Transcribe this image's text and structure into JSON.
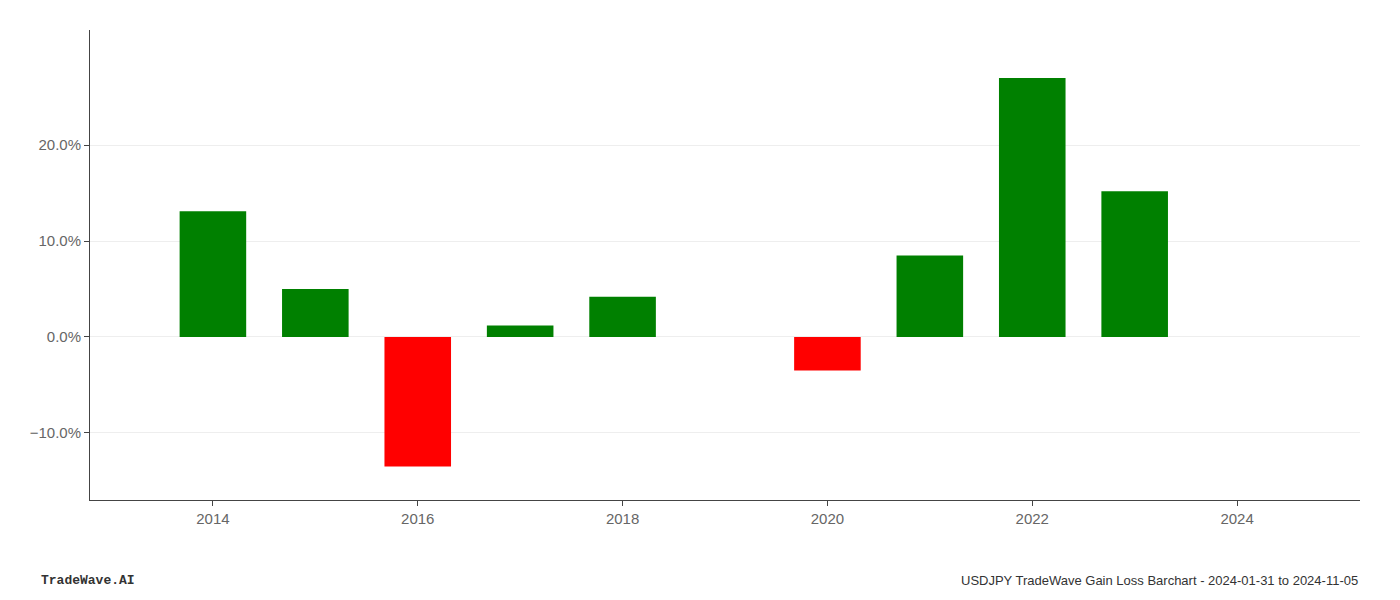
{
  "chart_data": {
    "type": "bar",
    "x": [
      2014,
      2015,
      2016,
      2017,
      2018,
      2020,
      2021,
      2022,
      2023
    ],
    "values": [
      13.1,
      5.0,
      -13.5,
      1.2,
      4.2,
      -3.5,
      8.5,
      27.0,
      15.2
    ],
    "colors": [
      "#008000",
      "#008000",
      "#ff0000",
      "#008000",
      "#008000",
      "#ff0000",
      "#008000",
      "#008000",
      "#008000"
    ],
    "xlim": [
      2012.8,
      2025.2
    ],
    "xticks": [
      2014,
      2016,
      2018,
      2020,
      2022,
      2024
    ],
    "ylim": [
      -17,
      32
    ],
    "yticks": [
      {
        "value": -10.0,
        "label": "−10.0%"
      },
      {
        "value": 0.0,
        "label": "0.0%"
      },
      {
        "value": 10.0,
        "label": "10.0%"
      },
      {
        "value": 20.0,
        "label": "20.0%"
      }
    ],
    "grid": true,
    "annotations": [
      "TradeWave.AI",
      "USDJPY TradeWave Gain Loss Barchart - 2024-01-31 to 2024-11-05"
    ]
  }
}
